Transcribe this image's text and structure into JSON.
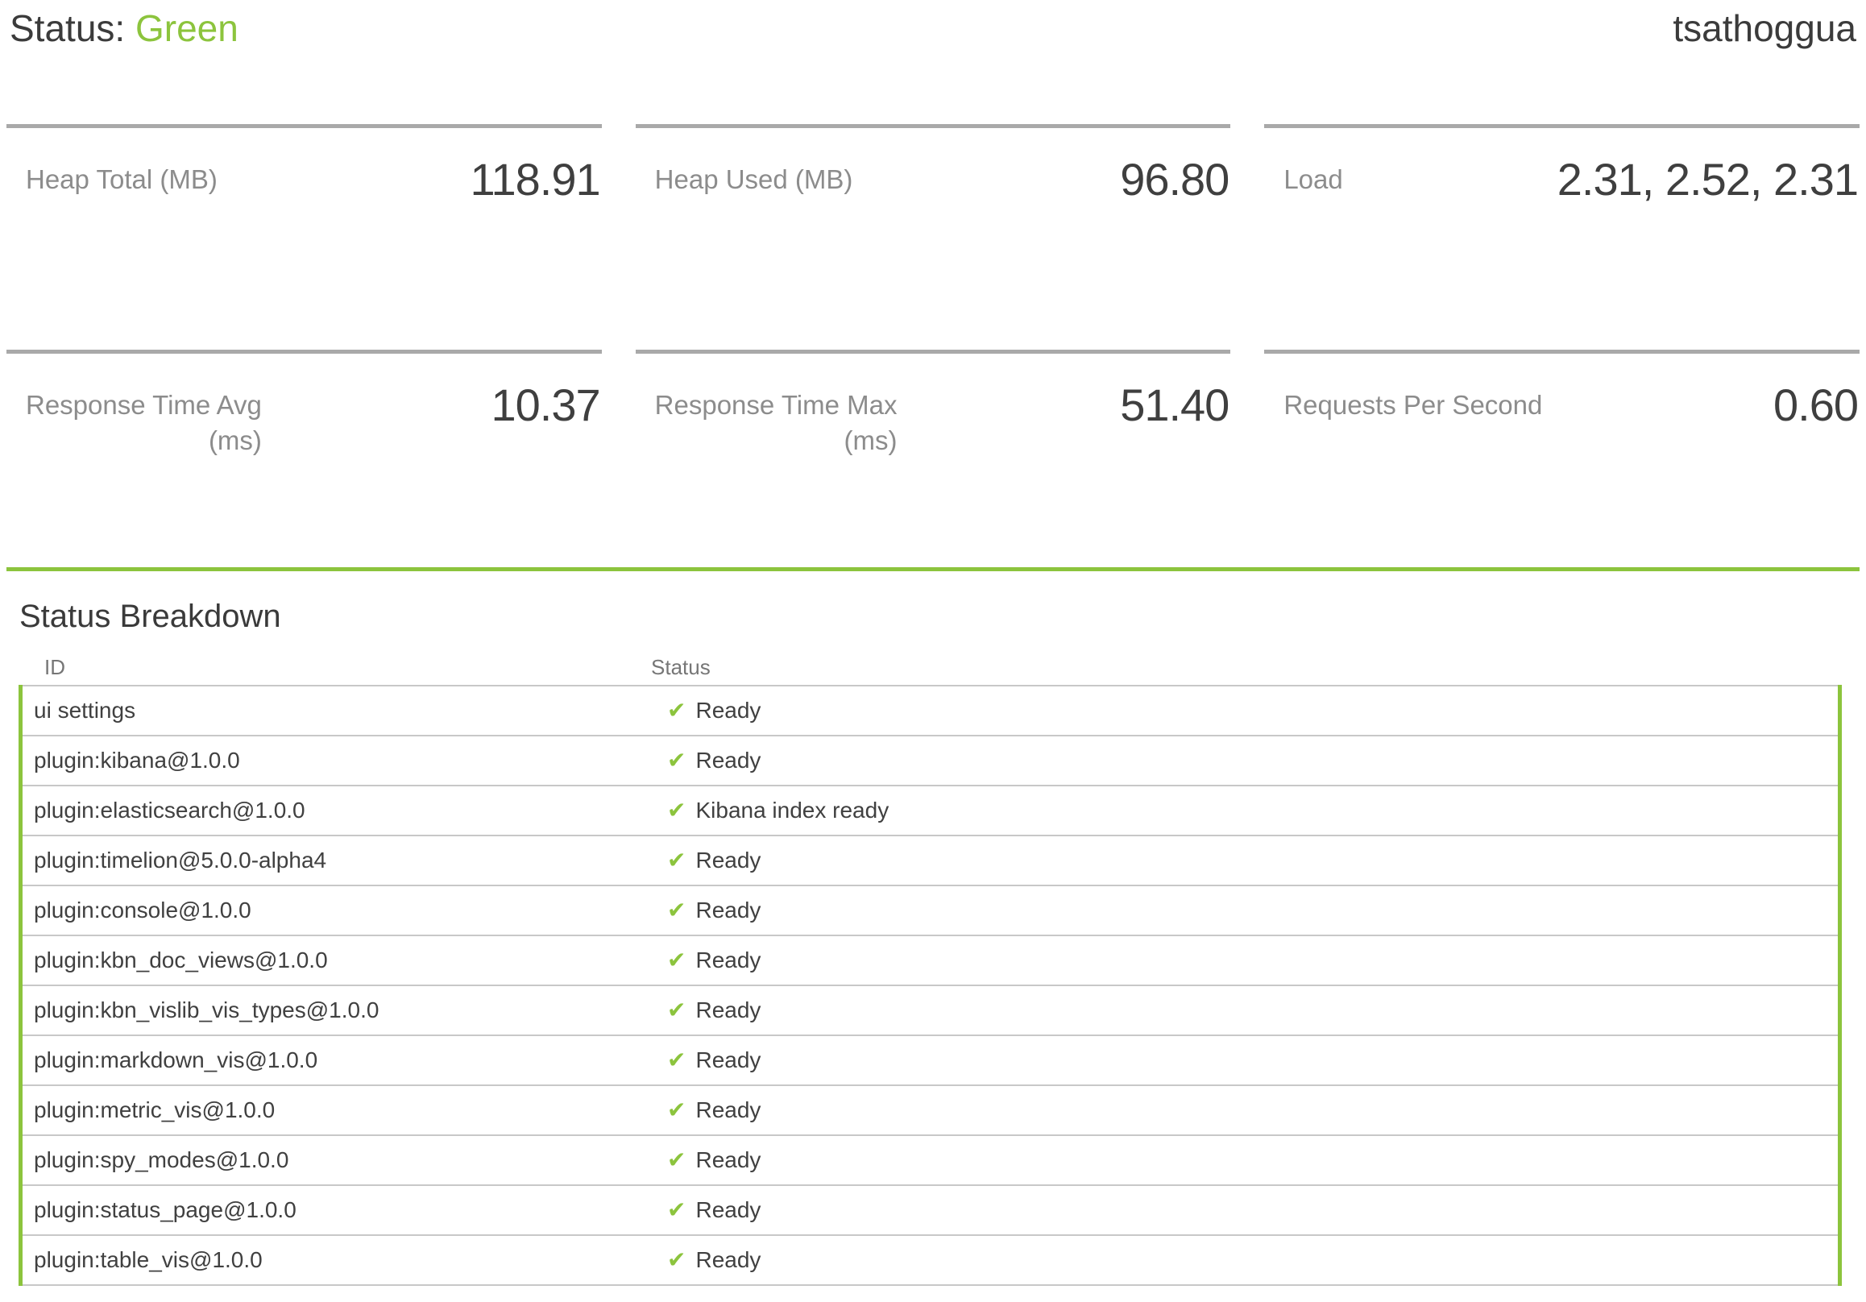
{
  "header": {
    "status_label": "Status:",
    "status_value": "Green",
    "hostname": "tsathoggua"
  },
  "colors": {
    "status_green": "#8cc43d",
    "metric_border_gray": "#a9a9a9",
    "table_border_gray": "#c8c8c8",
    "label_gray": "#8c8c8c",
    "text_dark": "#3f3f3f"
  },
  "metrics": [
    {
      "label": "Heap Total (MB)",
      "unit": "",
      "value": "118.91"
    },
    {
      "label": "Heap Used (MB)",
      "unit": "",
      "value": "96.80"
    },
    {
      "label": "Load",
      "unit": "",
      "value": "2.31, 2.52, 2.31"
    },
    {
      "label": "Response Time Avg",
      "unit": "(ms)",
      "value": "10.37"
    },
    {
      "label": "Response Time Max",
      "unit": "(ms)",
      "value": "51.40"
    },
    {
      "label": "Requests Per Second",
      "unit": "",
      "value": "0.60"
    }
  ],
  "breakdown": {
    "title": "Status Breakdown",
    "columns": [
      "ID",
      "Status"
    ],
    "check_icon": "✔",
    "rows": [
      {
        "id": "ui settings",
        "status": "Ready"
      },
      {
        "id": "plugin:kibana@1.0.0",
        "status": "Ready"
      },
      {
        "id": "plugin:elasticsearch@1.0.0",
        "status": "Kibana index ready"
      },
      {
        "id": "plugin:timelion@5.0.0-alpha4",
        "status": "Ready"
      },
      {
        "id": "plugin:console@1.0.0",
        "status": "Ready"
      },
      {
        "id": "plugin:kbn_doc_views@1.0.0",
        "status": "Ready"
      },
      {
        "id": "plugin:kbn_vislib_vis_types@1.0.0",
        "status": "Ready"
      },
      {
        "id": "plugin:markdown_vis@1.0.0",
        "status": "Ready"
      },
      {
        "id": "plugin:metric_vis@1.0.0",
        "status": "Ready"
      },
      {
        "id": "plugin:spy_modes@1.0.0",
        "status": "Ready"
      },
      {
        "id": "plugin:status_page@1.0.0",
        "status": "Ready"
      },
      {
        "id": "plugin:table_vis@1.0.0",
        "status": "Ready"
      }
    ]
  }
}
